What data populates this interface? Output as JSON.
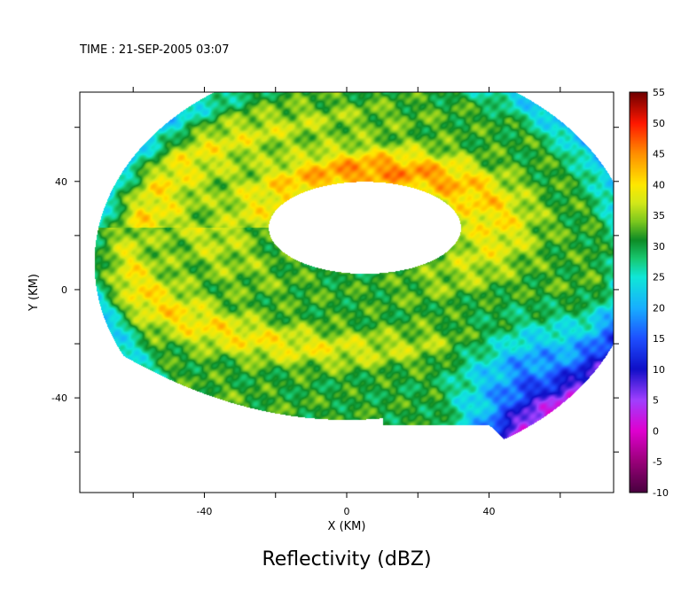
{
  "header": {
    "time_label": "TIME : 21-SEP-2005 03:07"
  },
  "chart_data": {
    "type": "heatmap",
    "title": "Reflectivity (dBZ)",
    "xlabel": "X (KM)",
    "ylabel": "Y (KM)",
    "xlim": [
      -75,
      75
    ],
    "ylim": [
      -75,
      73
    ],
    "x_ticks": [
      -40,
      0,
      40
    ],
    "y_ticks": [
      -40,
      0,
      40
    ],
    "x_minor_ticks": [
      -60,
      -40,
      -20,
      0,
      20,
      40,
      60
    ],
    "y_minor_ticks": [
      -60,
      -40,
      -20,
      0,
      20,
      40,
      60
    ],
    "grid": false,
    "colorbar": {
      "label_values": [
        55,
        50,
        45,
        40,
        35,
        30,
        25,
        20,
        15,
        10,
        5,
        0,
        -5,
        -10
      ],
      "range": [
        -10,
        55
      ],
      "stops": [
        {
          "v": -10,
          "c": "#4a0040"
        },
        {
          "v": -5,
          "c": "#9a007a"
        },
        {
          "v": 0,
          "c": "#e000d0"
        },
        {
          "v": 5,
          "c": "#a040ff"
        },
        {
          "v": 10,
          "c": "#1010c8"
        },
        {
          "v": 15,
          "c": "#1e50ff"
        },
        {
          "v": 20,
          "c": "#18b0ff"
        },
        {
          "v": 25,
          "c": "#10e8d8"
        },
        {
          "v": 28,
          "c": "#18c870"
        },
        {
          "v": 31,
          "c": "#0e8c26"
        },
        {
          "v": 34,
          "c": "#7cc81e"
        },
        {
          "v": 37,
          "c": "#d2e81a"
        },
        {
          "v": 40,
          "c": "#ffe800"
        },
        {
          "v": 45,
          "c": "#ff9000"
        },
        {
          "v": 50,
          "c": "#ff1800"
        },
        {
          "v": 55,
          "c": "#700000"
        }
      ]
    },
    "field": {
      "eye_center": [
        5,
        23
      ],
      "eye_radii": [
        27,
        17
      ],
      "outer_radius_km": 76,
      "bands": [
        {
          "name": "eyewall",
          "r_km": 10,
          "width_km": 9,
          "peak_dbz": 45,
          "peak_angle_deg": 80
        },
        {
          "name": "inner_rainband",
          "r_km": 30,
          "width_km": 8,
          "peak_dbz": 40,
          "peak_angle_deg": 200
        },
        {
          "name": "outer_rainband",
          "r_km": 52,
          "width_km": 8,
          "peak_dbz": 39,
          "peak_angle_deg": 110
        }
      ],
      "background_dbz": 30
    }
  }
}
